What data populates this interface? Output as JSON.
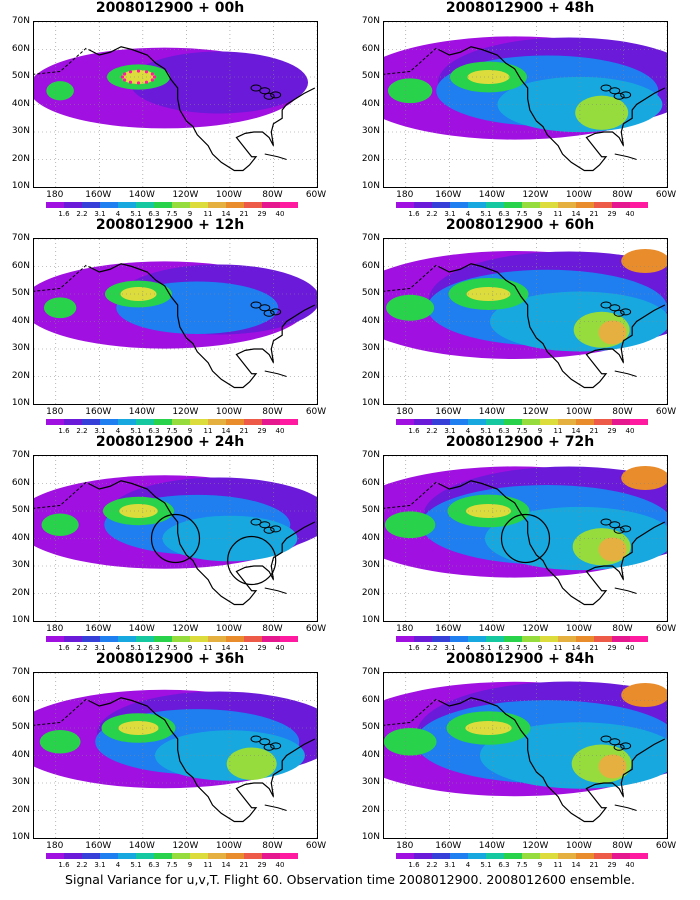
{
  "panels": [
    {
      "title": "2008012900 + 00h",
      "level": 0.15,
      "circles": [],
      "dots": true
    },
    {
      "title": "2008012900 + 48h",
      "level": 0.85,
      "circles": [],
      "dots": false
    },
    {
      "title": "2008012900 + 12h",
      "level": 0.35,
      "circles": [],
      "dots": false
    },
    {
      "title": "2008012900 + 60h",
      "level": 1.0,
      "circles": [],
      "dots": false
    },
    {
      "title": "2008012900 + 24h",
      "level": 0.55,
      "circles": [
        "125W 40N",
        "90W 32N"
      ],
      "dots": false
    },
    {
      "title": "2008012900 + 72h",
      "level": 1.1,
      "circles": [
        "125W 40N"
      ],
      "dots": false
    },
    {
      "title": "2008012900 + 36h",
      "level": 0.7,
      "circles": [],
      "dots": false
    },
    {
      "title": "2008012900 + 84h",
      "level": 1.2,
      "circles": [],
      "dots": false
    }
  ],
  "axes": {
    "lat_labels": [
      "70N",
      "60N",
      "50N",
      "40N",
      "30N",
      "20N",
      "10N"
    ],
    "lon_labels": [
      "180",
      "160W",
      "140W",
      "120W",
      "100W",
      "80W",
      "60W"
    ],
    "lon_range": [
      -190,
      -60
    ],
    "lat_range": [
      10,
      70
    ]
  },
  "colorbar": {
    "labels": [
      "1.6",
      "2.2",
      "3.1",
      "4",
      "5.1",
      "6.3",
      "7.5",
      "9",
      "11",
      "14",
      "21",
      "29",
      "40"
    ],
    "colors": [
      "#a010e0",
      "#6a1ad8",
      "#3640d8",
      "#1f7ef0",
      "#17a8e0",
      "#16c8a0",
      "#28d24a",
      "#96dc3c",
      "#dcdc3c",
      "#e6b040",
      "#e88c2c",
      "#ee5a48",
      "#e61890",
      "#ff1aa0"
    ]
  },
  "caption": "Signal Variance for u,v,T. Flight 60. Observation time 2008012900. 2008012600 ensemble."
}
